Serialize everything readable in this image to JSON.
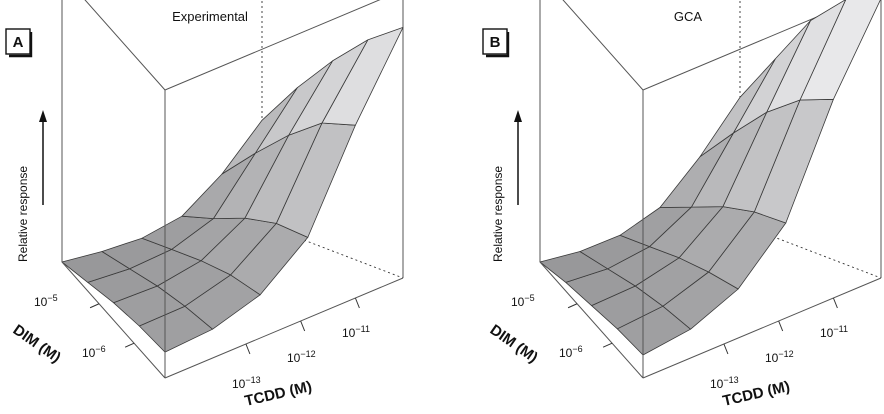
{
  "chart_data": [
    {
      "type": "surface",
      "panel_label": "A",
      "title": "Experimental",
      "zlabel": "Relative response",
      "xlabel": "TCDD (M)",
      "ylabel": "DIM (M)",
      "x_ticks": [
        {
          "base": "10",
          "exp": "−13"
        },
        {
          "base": "10",
          "exp": "−12"
        },
        {
          "base": "10",
          "exp": "−11"
        }
      ],
      "y_ticks": [
        {
          "base": "10",
          "exp": "−6"
        },
        {
          "base": "10",
          "exp": "−5"
        }
      ],
      "x_scale": "log",
      "y_scale": "log",
      "z": [
        [
          0.0,
          0.01,
          0.03,
          0.08,
          0.2,
          0.36
        ],
        [
          0.03,
          0.04,
          0.07,
          0.14,
          0.33,
          0.52
        ],
        [
          0.06,
          0.07,
          0.11,
          0.21,
          0.45,
          0.66
        ],
        [
          0.08,
          0.09,
          0.14,
          0.26,
          0.55,
          0.78
        ],
        [
          0.09,
          0.1,
          0.15,
          0.28,
          0.6,
          0.87
        ]
      ]
    },
    {
      "type": "surface",
      "panel_label": "B",
      "title": "GCA",
      "zlabel": "Relative response",
      "xlabel": "TCDD (M)",
      "ylabel": "DIM (M)",
      "x_ticks": [
        {
          "base": "10",
          "exp": "−13"
        },
        {
          "base": "10",
          "exp": "−12"
        },
        {
          "base": "10",
          "exp": "−11"
        }
      ],
      "y_ticks": [
        {
          "base": "10",
          "exp": "−6"
        },
        {
          "base": "10",
          "exp": "−5"
        }
      ],
      "x_scale": "log",
      "y_scale": "log",
      "z": [
        [
          0.0,
          0.01,
          0.04,
          0.11,
          0.26,
          0.44
        ],
        [
          0.03,
          0.04,
          0.08,
          0.18,
          0.4,
          0.62
        ],
        [
          0.05,
          0.07,
          0.12,
          0.25,
          0.53,
          0.8
        ],
        [
          0.07,
          0.09,
          0.15,
          0.3,
          0.63,
          0.92
        ],
        [
          0.08,
          0.1,
          0.17,
          0.33,
          0.69,
          0.97
        ]
      ]
    }
  ]
}
